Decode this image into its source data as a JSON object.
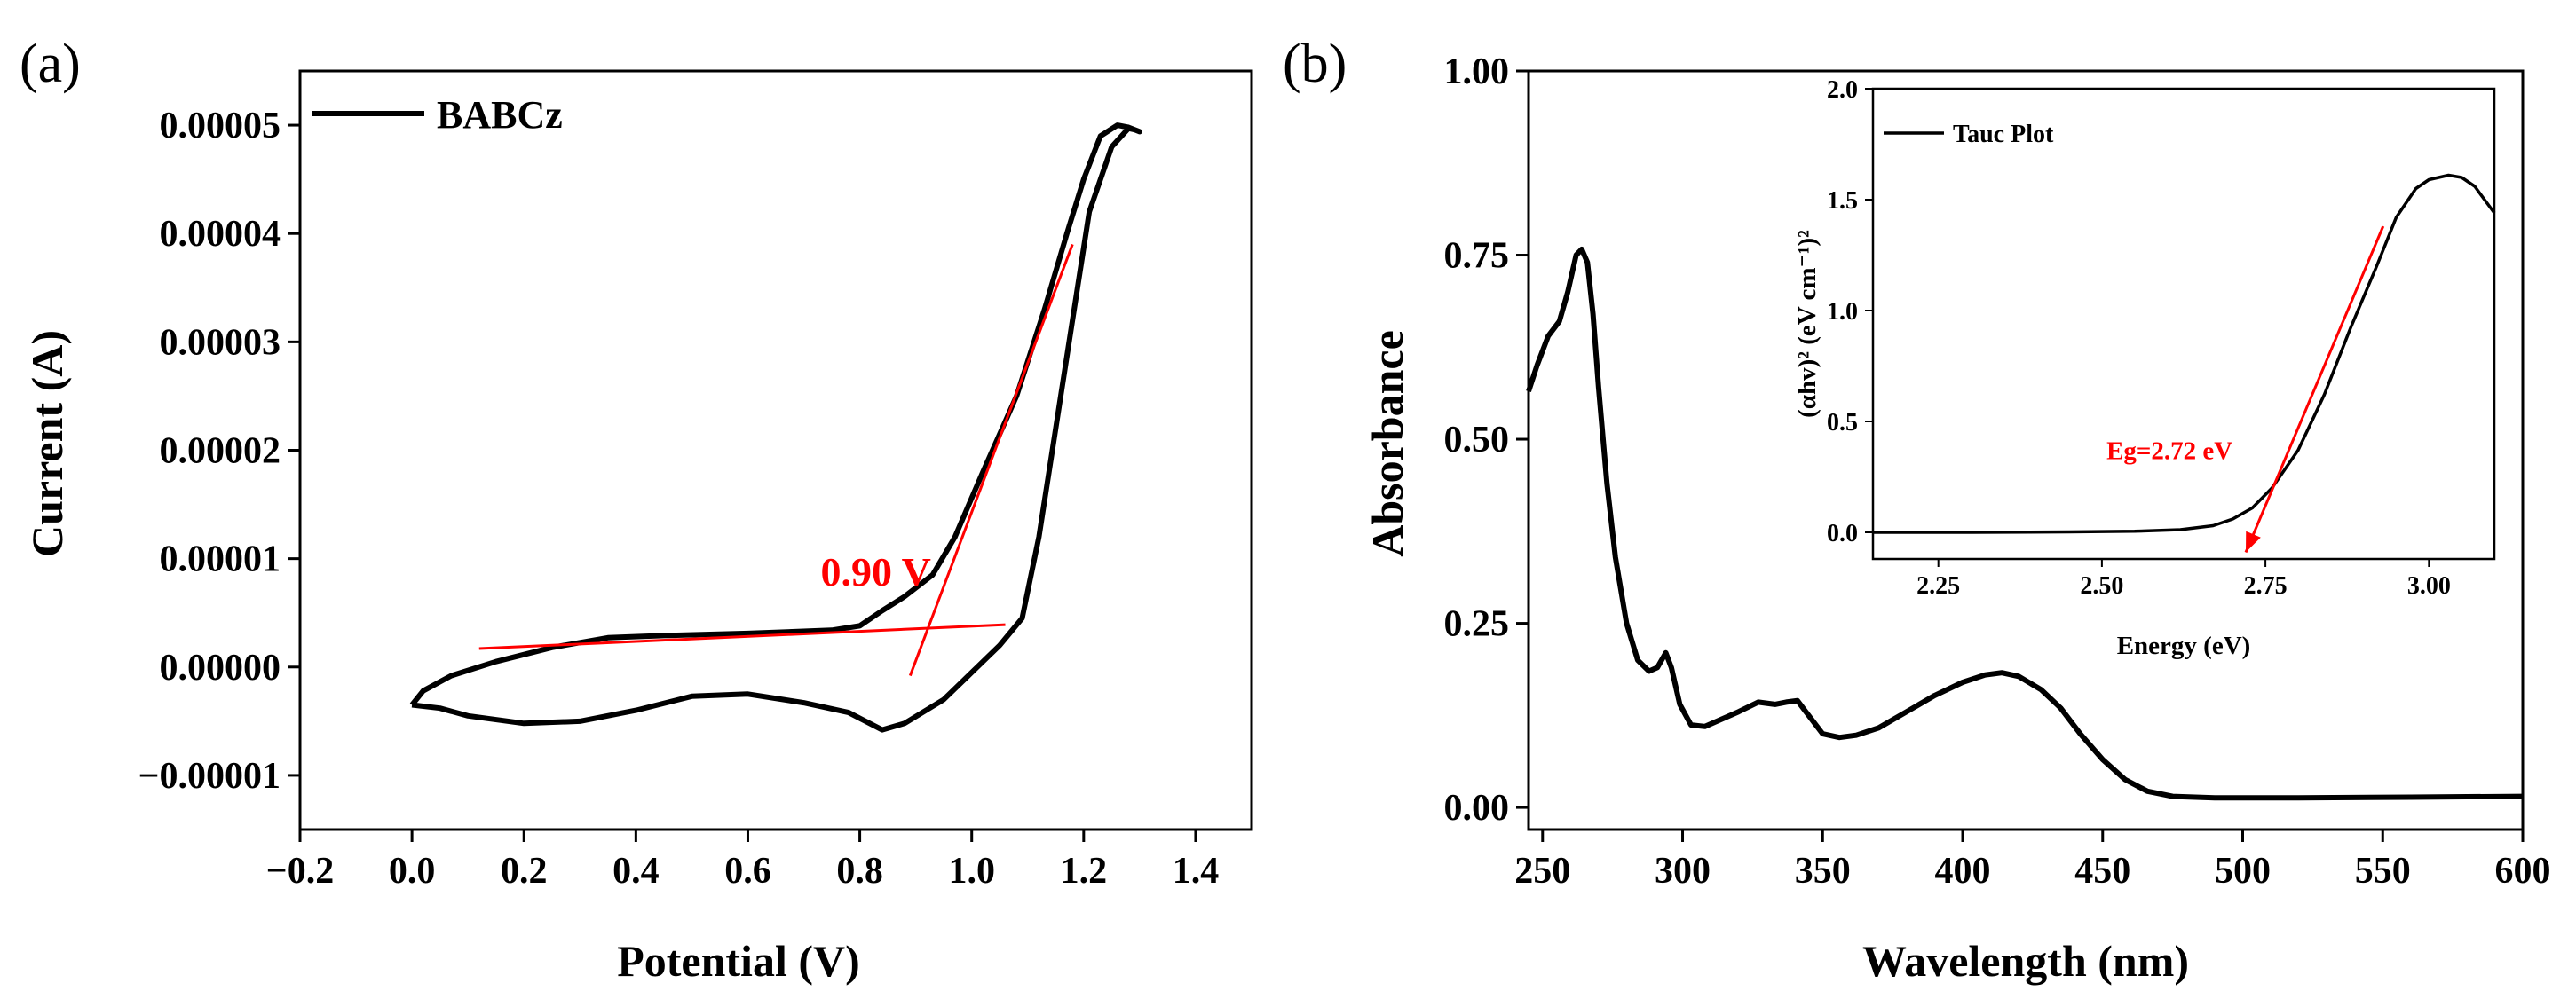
{
  "panels": {
    "a": {
      "label": "(a)"
    },
    "b": {
      "label": "(b)"
    }
  },
  "chart_data": [
    {
      "id": "cv",
      "type": "line",
      "panel": "(a)",
      "title": "",
      "xlabel": "Potential (V)",
      "ylabel": "Current (A)",
      "xlim": [
        -0.2,
        1.5
      ],
      "ylim": [
        -1.5e-05,
        5.5e-05
      ],
      "xticks": [
        -0.2,
        0.0,
        0.2,
        0.4,
        0.6,
        0.8,
        1.0,
        1.2,
        1.4
      ],
      "xtick_labels": [
        "−0.2",
        "0.0",
        "0.2",
        "0.4",
        "0.6",
        "0.8",
        "1.0",
        "1.2",
        "1.4"
      ],
      "yticks": [
        -1e-05,
        0.0,
        1e-05,
        2e-05,
        3e-05,
        4e-05,
        5e-05
      ],
      "ytick_labels": [
        "−0.00001",
        "0.00000",
        "0.00001",
        "0.00002",
        "0.00003",
        "0.00004",
        "0.00005"
      ],
      "legend": {
        "entries": [
          "BABCz"
        ],
        "placement": "top-left"
      },
      "series": [
        {
          "name": "BABCz",
          "color": "#000000",
          "points": [
            [
              0.0,
              -3.5e-06
            ],
            [
              0.05,
              -3.8e-06
            ],
            [
              0.1,
              -4.5e-06
            ],
            [
              0.2,
              -5.2e-06
            ],
            [
              0.3,
              -5e-06
            ],
            [
              0.4,
              -4e-06
            ],
            [
              0.5,
              -2.7e-06
            ],
            [
              0.6,
              -2.5e-06
            ],
            [
              0.7,
              -3.3e-06
            ],
            [
              0.78,
              -4.2e-06
            ],
            [
              0.84,
              -5.8e-06
            ],
            [
              0.88,
              -5.2e-06
            ],
            [
              0.95,
              -3e-06
            ],
            [
              1.0,
              -5e-07
            ],
            [
              1.05,
              2e-06
            ],
            [
              1.09,
              4.5e-06
            ],
            [
              1.12,
              1.2e-05
            ],
            [
              1.15,
              2.2e-05
            ],
            [
              1.18,
              3.2e-05
            ],
            [
              1.21,
              4.2e-05
            ],
            [
              1.25,
              4.8e-05
            ],
            [
              1.28,
              4.97e-05
            ],
            [
              1.29,
              4.96e-05
            ],
            [
              1.3,
              4.94e-05
            ],
            [
              1.28,
              4.98e-05
            ],
            [
              1.26,
              5e-05
            ],
            [
              1.23,
              4.9e-05
            ],
            [
              1.2,
              4.5e-05
            ],
            [
              1.17,
              4e-05
            ],
            [
              1.13,
              3.3e-05
            ],
            [
              1.08,
              2.5e-05
            ],
            [
              1.02,
              1.8e-05
            ],
            [
              0.97,
              1.2e-05
            ],
            [
              0.93,
              8.5e-06
            ],
            [
              0.88,
              6.5e-06
            ],
            [
              0.84,
              5.2e-06
            ],
            [
              0.8,
              3.8e-06
            ],
            [
              0.75,
              3.4e-06
            ],
            [
              0.6,
              3.1e-06
            ],
            [
              0.45,
              2.9e-06
            ],
            [
              0.35,
              2.7e-06
            ],
            [
              0.25,
              1.8e-06
            ],
            [
              0.15,
              5e-07
            ],
            [
              0.07,
              -8e-07
            ],
            [
              0.02,
              -2.2e-06
            ],
            [
              0.0,
              -3.5e-06
            ]
          ]
        }
      ],
      "tangent_lines": [
        {
          "color": "#ff0000",
          "from": [
            0.12,
            1.7e-06
          ],
          "to": [
            1.06,
            3.9e-06
          ]
        },
        {
          "color": "#ff0000",
          "from": [
            0.89,
            -8e-07
          ],
          "to": [
            1.18,
            3.9e-05
          ]
        }
      ],
      "annotations": [
        {
          "text": "0.90 V",
          "at": [
            0.73,
            7.5e-06
          ],
          "color": "#ff0000"
        }
      ]
    },
    {
      "id": "uvvis",
      "type": "line",
      "panel": "(b)",
      "title": "",
      "xlabel": "Wavelength (nm)",
      "ylabel": "Absorbance",
      "xlim": [
        245,
        600
      ],
      "ylim": [
        -0.03,
        1.0
      ],
      "xticks": [
        250,
        300,
        350,
        400,
        450,
        500,
        550,
        600
      ],
      "xtick_labels": [
        "250",
        "300",
        "350",
        "400",
        "450",
        "500",
        "550",
        "600"
      ],
      "yticks": [
        0.0,
        0.25,
        0.5,
        0.75,
        1.0
      ],
      "ytick_labels": [
        "0.00",
        "0.25",
        "0.50",
        "0.75",
        "1.00"
      ],
      "series": [
        {
          "name": "Absorbance",
          "color": "#000000",
          "points": [
            [
              245,
              0.565
            ],
            [
              248,
              0.6
            ],
            [
              252,
              0.64
            ],
            [
              256,
              0.66
            ],
            [
              259,
              0.7
            ],
            [
              262,
              0.75
            ],
            [
              264,
              0.758
            ],
            [
              266,
              0.74
            ],
            [
              268,
              0.67
            ],
            [
              270,
              0.57
            ],
            [
              273,
              0.44
            ],
            [
              276,
              0.34
            ],
            [
              280,
              0.25
            ],
            [
              284,
              0.2
            ],
            [
              288,
              0.185
            ],
            [
              291,
              0.19
            ],
            [
              294,
              0.21
            ],
            [
              296,
              0.19
            ],
            [
              299,
              0.14
            ],
            [
              303,
              0.112
            ],
            [
              308,
              0.11
            ],
            [
              314,
              0.12
            ],
            [
              320,
              0.13
            ],
            [
              327,
              0.143
            ],
            [
              333,
              0.14
            ],
            [
              337,
              0.143
            ],
            [
              341,
              0.145
            ],
            [
              345,
              0.125
            ],
            [
              350,
              0.1
            ],
            [
              356,
              0.095
            ],
            [
              362,
              0.098
            ],
            [
              370,
              0.108
            ],
            [
              380,
              0.13
            ],
            [
              390,
              0.152
            ],
            [
              400,
              0.17
            ],
            [
              408,
              0.18
            ],
            [
              414,
              0.183
            ],
            [
              420,
              0.178
            ],
            [
              428,
              0.16
            ],
            [
              435,
              0.135
            ],
            [
              442,
              0.1
            ],
            [
              450,
              0.065
            ],
            [
              458,
              0.038
            ],
            [
              466,
              0.022
            ],
            [
              475,
              0.015
            ],
            [
              490,
              0.013
            ],
            [
              520,
              0.013
            ],
            [
              560,
              0.014
            ],
            [
              600,
              0.015
            ]
          ]
        }
      ],
      "inset": {
        "type": "line",
        "xlabel": "Energy (eV)",
        "ylabel": "(αhv)² (eV cm⁻¹)²",
        "xlim": [
          2.15,
          3.1
        ],
        "ylim": [
          -0.12,
          2.0
        ],
        "xticks": [
          2.25,
          2.5,
          2.75,
          3.0
        ],
        "xtick_labels": [
          "2.25",
          "2.50",
          "2.75",
          "3.00"
        ],
        "yticks": [
          0.0,
          0.5,
          1.0,
          1.5,
          2.0
        ],
        "ytick_labels": [
          "0.0",
          "0.5",
          "1.0",
          "1.5",
          "2.0"
        ],
        "legend": {
          "entries": [
            "Tauc Plot"
          ],
          "placement": "top-left"
        },
        "series": [
          {
            "name": "Tauc Plot",
            "color": "#000000",
            "points": [
              [
                2.15,
                0.0
              ],
              [
                2.3,
                0.0
              ],
              [
                2.45,
                0.002
              ],
              [
                2.55,
                0.005
              ],
              [
                2.62,
                0.012
              ],
              [
                2.67,
                0.03
              ],
              [
                2.7,
                0.06
              ],
              [
                2.73,
                0.11
              ],
              [
                2.76,
                0.2
              ],
              [
                2.8,
                0.37
              ],
              [
                2.84,
                0.62
              ],
              [
                2.88,
                0.92
              ],
              [
                2.92,
                1.2
              ],
              [
                2.95,
                1.42
              ],
              [
                2.98,
                1.55
              ],
              [
                3.0,
                1.59
              ],
              [
                3.03,
                1.61
              ],
              [
                3.05,
                1.6
              ],
              [
                3.07,
                1.56
              ],
              [
                3.09,
                1.48
              ],
              [
                3.1,
                1.44
              ]
            ]
          }
        ],
        "fit_line": {
          "color": "#ff0000",
          "from": [
            2.93,
            1.38
          ],
          "to": [
            2.72,
            -0.09
          ]
        },
        "annotations": [
          {
            "text": "Eg=2.72 eV",
            "at": [
              2.7,
              0.33
            ],
            "color": "#ff0000"
          }
        ]
      }
    }
  ]
}
